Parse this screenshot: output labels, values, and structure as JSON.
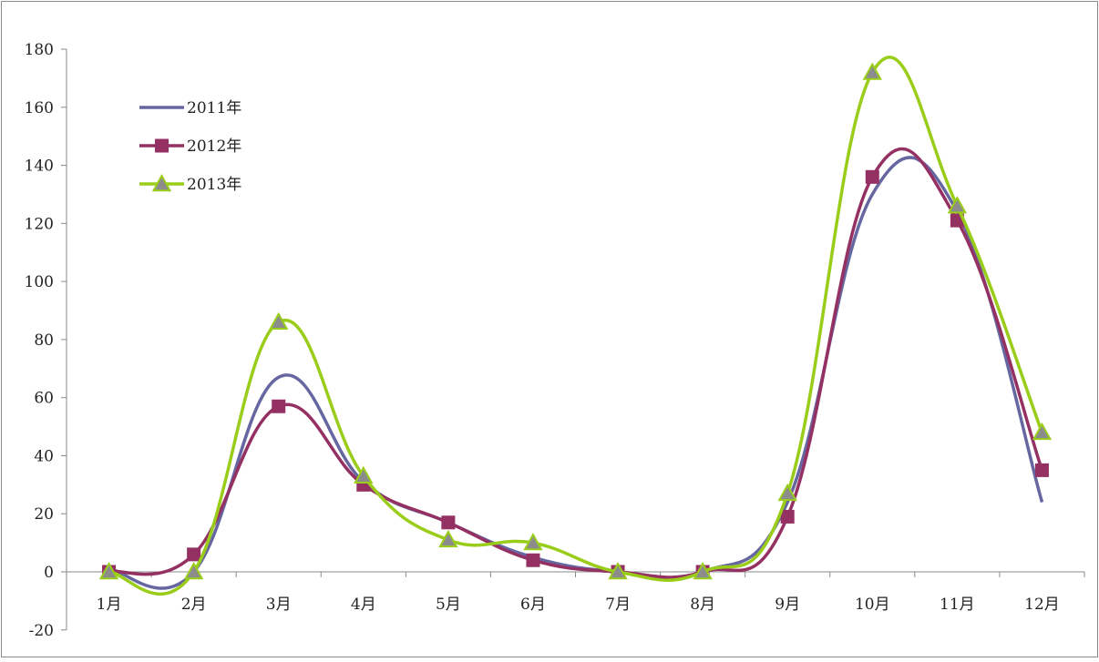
{
  "chart_data": {
    "type": "line",
    "title": "",
    "xlabel": "",
    "ylabel": "",
    "categories": [
      "1月",
      "2月",
      "3月",
      "4月",
      "5月",
      "6月",
      "7月",
      "8月",
      "9月",
      "10月",
      "11月",
      "12月"
    ],
    "ylim": [
      -20,
      180
    ],
    "yticks": [
      -20,
      0,
      20,
      40,
      60,
      80,
      100,
      120,
      140,
      160,
      180
    ],
    "grid": false,
    "smooth": true,
    "legend_position": "top-left",
    "series": [
      {
        "name": "2011年",
        "color": "#6666a0",
        "marker": "none",
        "values": [
          1,
          0,
          67,
          31,
          17,
          5,
          0,
          0,
          24,
          130,
          124,
          24
        ]
      },
      {
        "name": "2012年",
        "color": "#953063",
        "marker": "square",
        "values": [
          0,
          6,
          57,
          30,
          17,
          4,
          0,
          0,
          19,
          136,
          121,
          35
        ]
      },
      {
        "name": "2013年",
        "color": "#9acd1a",
        "marker": "triangle",
        "marker_fill": "#8c8c8c",
        "values": [
          0,
          0,
          86,
          33,
          11,
          10,
          0,
          0,
          27,
          172,
          126,
          48
        ]
      }
    ]
  }
}
